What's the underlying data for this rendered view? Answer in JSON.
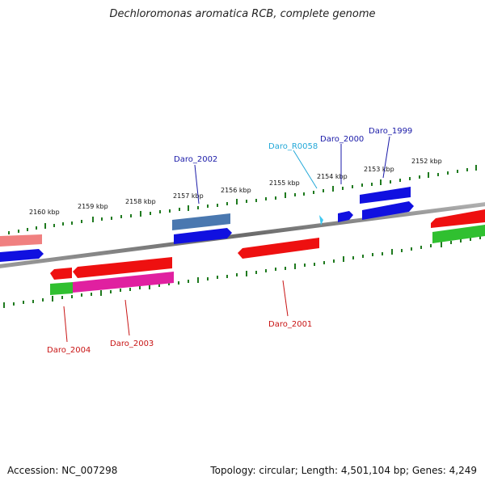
{
  "title": "Dechloromonas aromatica RCB, complete genome",
  "accession_text": "Accession: NC_007298",
  "topology_text": "Topology: circular; Length: 4,501,104 bp; Genes: 4,249",
  "scale_ticks": [
    "2160 kbp",
    "2159 kbp",
    "2158 kbp",
    "2157 kbp",
    "2156 kbp",
    "2155 kbp",
    "2154 kbp",
    "2153 kbp",
    "2152 kbp"
  ],
  "gene_labels": {
    "daro_2002": "Daro_2002",
    "daro_r0058": "Daro_R0058",
    "daro_2000": "Daro_2000",
    "daro_1999": "Daro_1999",
    "daro_2004": "Daro_2004",
    "daro_2003": "Daro_2003",
    "daro_2001": "Daro_2001"
  },
  "colors": {
    "backbone": "#808080",
    "tick_green": "#1f7a1f",
    "label_blue": "#1a1aa8",
    "label_red": "#c81414",
    "label_cyan": "#22a8d8",
    "gene_blue": "#1010e0",
    "gene_red": "#ee1010",
    "gene_pink": "#f08080",
    "gene_magenta": "#e020a0",
    "gene_green": "#30c030",
    "gene_steelblue": "#4a78b0",
    "gene_cyan": "#40c8f0"
  }
}
